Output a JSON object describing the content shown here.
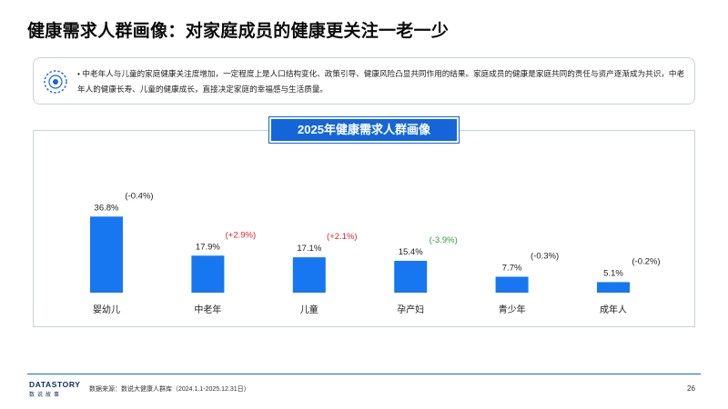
{
  "page": {
    "title": "健康需求人群画像：对家庭成员的健康更关注一老一少",
    "bullet": "• 中老年人与儿童的家庭健康关注度增加，一定程度上是人口结构变化、政策引导、健康风险凸显共同作用的结果。家庭成员的健康是家庭共同的责任与资产逐渐成为共识，中老年人的健康长寿、儿童的健康成长，直接决定家庭的幸福感与生活质量。",
    "source": "数据来源：数说大健康人群库（2024.1.1-2025.12.31日）",
    "page_number": "26",
    "logo_main": "DATASTORY",
    "logo_sub": "数说故事"
  },
  "colors": {
    "bar": "#1677f0",
    "title_bg": "#1466d8",
    "positive": "#d9262c",
    "negative": "#2e9b45",
    "neutral": "#222222"
  },
  "chart_data": {
    "type": "bar",
    "title": "2025年健康需求人群画像",
    "categories": [
      "婴幼儿",
      "中老年",
      "儿童",
      "孕产妇",
      "青少年",
      "成年人"
    ],
    "values": [
      36.8,
      17.9,
      17.1,
      15.4,
      7.7,
      5.1
    ],
    "value_labels": [
      "36.8%",
      "17.9%",
      "17.1%",
      "15.4%",
      "7.7%",
      "5.1%"
    ],
    "changes": [
      "(-0.4%)",
      "(+2.9%)",
      "(+2.1%)",
      "(-3.9%)",
      "(-0.3%)",
      "(-0.2%)"
    ],
    "change_signs": [
      "neutral",
      "positive",
      "positive",
      "negative",
      "neutral",
      "neutral"
    ],
    "grid": false,
    "legend": "none",
    "ylim": [
      0,
      40
    ]
  }
}
